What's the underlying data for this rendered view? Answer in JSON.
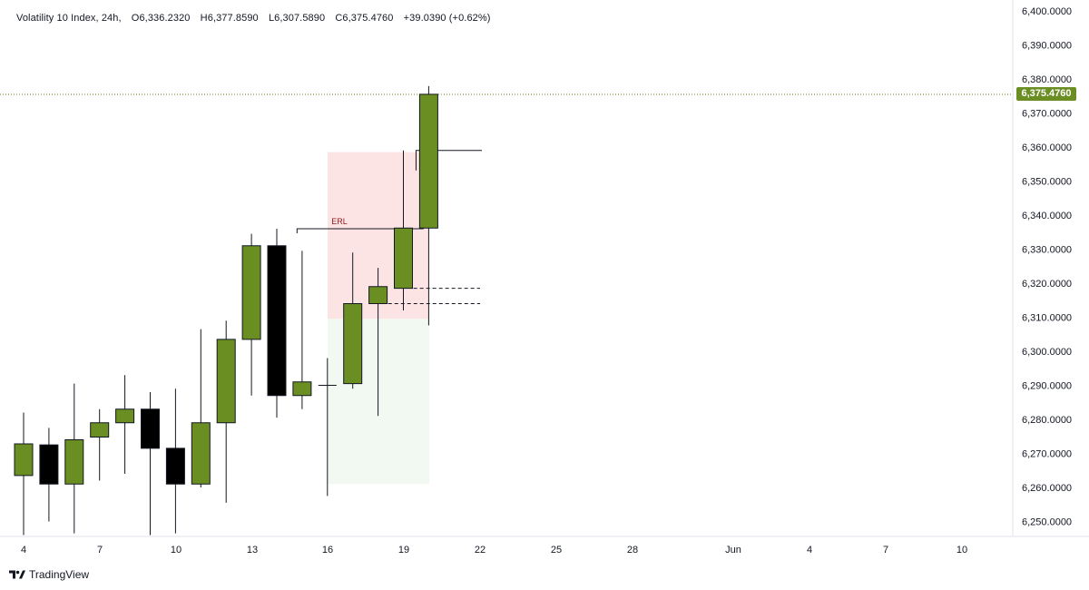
{
  "legend": {
    "symbol": "Volatility 10 Index, 24h,",
    "open": "O6,336.2320",
    "high": "H6,377.8590",
    "low": "L6,307.5890",
    "close": "C6,375.4760",
    "change": "+39.0390 (+0.62%)"
  },
  "price_label": "6,375.4760",
  "brand": "TradingView",
  "annotation": "ERL",
  "colors": {
    "bull": "#6b8e23",
    "bear": "#000000",
    "premium_zone": "#fde4e4",
    "discount_zone": "#f2f9f3",
    "erl_text": "#8b1a1a",
    "last_price_line": "#6b8e23"
  },
  "chart_data": {
    "type": "candlestick",
    "y_ticks": [
      "6,250.0000",
      "6,260.0000",
      "6,270.0000",
      "6,280.0000",
      "6,290.0000",
      "6,300.0000",
      "6,310.0000",
      "6,320.0000",
      "6,330.0000",
      "6,340.0000",
      "6,350.0000",
      "6,360.0000",
      "6,370.0000",
      "6,380.0000",
      "6,390.0000",
      "6,400.0000"
    ],
    "x_ticks": [
      "4",
      "7",
      "10",
      "13",
      "16",
      "19",
      "22",
      "25",
      "28",
      "Jun",
      "4",
      "7",
      "10"
    ],
    "ylim": [
      6246,
      6401
    ],
    "candles": [
      {
        "o": 6263.5,
        "h": 6282.0,
        "l": 6246.0,
        "c": 6272.8
      },
      {
        "o": 6272.5,
        "h": 6277.5,
        "l": 6250.0,
        "c": 6261.0
      },
      {
        "o": 6261.0,
        "h": 6290.5,
        "l": 6246.5,
        "c": 6274.0
      },
      {
        "o": 6274.8,
        "h": 6283.0,
        "l": 6262.0,
        "c": 6279.0
      },
      {
        "o": 6279.0,
        "h": 6293.0,
        "l": 6264.0,
        "c": 6283.0
      },
      {
        "o": 6283.0,
        "h": 6288.0,
        "l": 6246.0,
        "c": 6271.5
      },
      {
        "o": 6271.5,
        "h": 6289.0,
        "l": 6246.5,
        "c": 6261.0
      },
      {
        "o": 6261.0,
        "h": 6306.5,
        "l": 6260.0,
        "c": 6279.0
      },
      {
        "o": 6279.0,
        "h": 6309.0,
        "l": 6255.5,
        "c": 6303.5
      },
      {
        "o": 6303.5,
        "h": 6334.5,
        "l": 6287.0,
        "c": 6331.0
      },
      {
        "o": 6331.0,
        "h": 6336.0,
        "l": 6280.5,
        "c": 6287.0
      },
      {
        "o": 6287.0,
        "h": 6329.5,
        "l": 6283.0,
        "c": 6291.0
      },
      {
        "o": 6290.0,
        "h": 6298.0,
        "l": 6257.5,
        "c": 6290.0
      },
      {
        "o": 6290.5,
        "h": 6329.0,
        "l": 6289.0,
        "c": 6314.0
      },
      {
        "o": 6314.0,
        "h": 6324.5,
        "l": 6281.0,
        "c": 6319.0
      },
      {
        "o": 6318.5,
        "h": 6359.0,
        "l": 6312.0,
        "c": 6336.2
      },
      {
        "o": 6336.2,
        "h": 6377.9,
        "l": 6307.6,
        "c": 6375.5
      }
    ],
    "zones": {
      "premium": [
        6309.5,
        6358.5
      ],
      "discount": [
        6261.0,
        6309.5
      ]
    },
    "levels": {
      "erl": 6336.0,
      "high_line": 6359.0,
      "dashed_1": 6318.5,
      "dashed_2": 6314.0,
      "last_price": 6375.476
    }
  }
}
